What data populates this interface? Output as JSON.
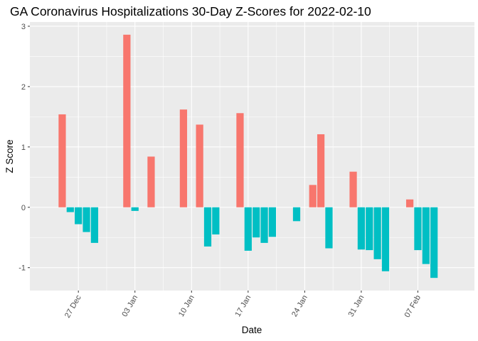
{
  "chart_data": {
    "type": "bar",
    "title": "GA Coronavirus Hospitalizations 30-Day Z-Scores for 2022-02-10",
    "xlabel": "Date",
    "ylabel": "Z Score",
    "xlim": [
      "2021-12-21",
      "2022-02-14"
    ],
    "ylim": [
      -1.38,
      3.07
    ],
    "y_ticks": [
      -1,
      0,
      1,
      2,
      3
    ],
    "x_ticks": [
      {
        "date": "2021-12-27",
        "label": "27 Dec"
      },
      {
        "date": "2022-01-03",
        "label": "03 Jan"
      },
      {
        "date": "2022-01-10",
        "label": "10 Jan"
      },
      {
        "date": "2022-01-17",
        "label": "17 Jan"
      },
      {
        "date": "2022-01-24",
        "label": "24 Jan"
      },
      {
        "date": "2022-01-31",
        "label": "31 Jan"
      },
      {
        "date": "2022-02-07",
        "label": "07 Feb"
      }
    ],
    "positive_color": "#F8766D",
    "negative_color": "#00BFC4",
    "panel_background": "#EBEBEB",
    "grid": true,
    "legend": "none",
    "bars": [
      {
        "date": "2021-12-25",
        "value": 1.54
      },
      {
        "date": "2021-12-26",
        "value": -0.08
      },
      {
        "date": "2021-12-27",
        "value": -0.28
      },
      {
        "date": "2021-12-28",
        "value": -0.41
      },
      {
        "date": "2021-12-29",
        "value": -0.59
      },
      {
        "date": "2022-01-02",
        "value": 2.86
      },
      {
        "date": "2022-01-03",
        "value": -0.06
      },
      {
        "date": "2022-01-05",
        "value": 0.84
      },
      {
        "date": "2022-01-09",
        "value": 1.62
      },
      {
        "date": "2022-01-11",
        "value": 1.37
      },
      {
        "date": "2022-01-12",
        "value": -0.65
      },
      {
        "date": "2022-01-13",
        "value": -0.45
      },
      {
        "date": "2022-01-16",
        "value": 1.56
      },
      {
        "date": "2022-01-17",
        "value": -0.72
      },
      {
        "date": "2022-01-18",
        "value": -0.5
      },
      {
        "date": "2022-01-19",
        "value": -0.59
      },
      {
        "date": "2022-01-20",
        "value": -0.49
      },
      {
        "date": "2022-01-23",
        "value": -0.23
      },
      {
        "date": "2022-01-25",
        "value": 0.37
      },
      {
        "date": "2022-01-26",
        "value": 1.21
      },
      {
        "date": "2022-01-27",
        "value": -0.68
      },
      {
        "date": "2022-01-30",
        "value": 0.59
      },
      {
        "date": "2022-01-31",
        "value": -0.7
      },
      {
        "date": "2022-02-01",
        "value": -0.71
      },
      {
        "date": "2022-02-02",
        "value": -0.86
      },
      {
        "date": "2022-02-03",
        "value": -1.06
      },
      {
        "date": "2022-02-06",
        "value": 0.13
      },
      {
        "date": "2022-02-07",
        "value": -0.71
      },
      {
        "date": "2022-02-08",
        "value": -0.94
      },
      {
        "date": "2022-02-09",
        "value": -1.17
      }
    ]
  }
}
